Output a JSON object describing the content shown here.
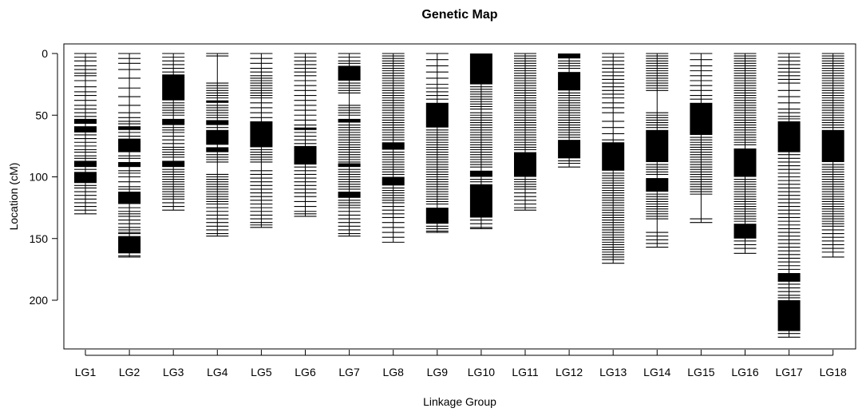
{
  "chart_data": {
    "type": "genetic-map",
    "title": "Genetic Map",
    "xlabel": "Linkage Group",
    "ylabel": "Location (cM)",
    "ylim": [
      0,
      237
    ],
    "y_reversed": true,
    "yticks": [
      0,
      50,
      100,
      150,
      200
    ],
    "grid": false,
    "color": "#000000",
    "groups": [
      {
        "name": "LG1",
        "length": 130,
        "dense": [
          [
            53,
            57
          ],
          [
            59,
            64
          ],
          [
            87,
            92
          ],
          [
            96,
            105
          ]
        ],
        "markers": [
          0,
          3,
          6,
          10,
          13,
          16,
          18,
          22,
          27,
          31,
          34,
          38,
          42,
          45,
          48,
          51,
          66,
          69,
          72,
          75,
          78,
          80,
          83,
          85,
          94,
          107,
          109,
          112,
          115,
          118,
          121,
          124,
          127,
          130
        ]
      },
      {
        "name": "LG2",
        "length": 165,
        "dense": [
          [
            59,
            62
          ],
          [
            69,
            80
          ],
          [
            88,
            92
          ],
          [
            112,
            122
          ],
          [
            148,
            162
          ]
        ],
        "markers": [
          0,
          4,
          8,
          13,
          20,
          28,
          35,
          42,
          48,
          52,
          55,
          57,
          64,
          67,
          83,
          85,
          95,
          97,
          100,
          104,
          108,
          110,
          125,
          128,
          130,
          132,
          135,
          138,
          141,
          143,
          145,
          146,
          164,
          165
        ]
      },
      {
        "name": "LG3",
        "length": 127,
        "dense": [
          [
            17,
            38
          ],
          [
            53,
            58
          ],
          [
            87,
            92
          ]
        ],
        "markers": [
          0,
          3,
          6,
          9,
          12,
          15,
          40,
          42,
          44,
          46,
          48,
          50,
          60,
          62,
          64,
          67,
          70,
          73,
          76,
          78,
          80,
          82,
          84,
          94,
          96,
          98,
          100,
          102,
          104,
          106,
          108,
          110,
          112,
          114,
          116,
          118,
          121,
          124,
          127
        ]
      },
      {
        "name": "LG4",
        "length": 148,
        "dense": [
          [
            38,
            40
          ],
          [
            54,
            58
          ],
          [
            62,
            74
          ],
          [
            76,
            80
          ]
        ],
        "markers": [
          0,
          2,
          24,
          26,
          28,
          30,
          32,
          34,
          36,
          42,
          44,
          46,
          48,
          50,
          52,
          60,
          82,
          84,
          86,
          88,
          98,
          100,
          102,
          104,
          106,
          108,
          110,
          112,
          114,
          116,
          118,
          120,
          122,
          125,
          128,
          131,
          134,
          137,
          140,
          143,
          146,
          148
        ]
      },
      {
        "name": "LG5",
        "length": 141,
        "dense": [
          [
            55,
            76
          ]
        ],
        "markers": [
          0,
          4,
          8,
          12,
          15,
          18,
          20,
          22,
          24,
          26,
          28,
          30,
          32,
          34,
          36,
          40,
          44,
          48,
          52,
          78,
          80,
          82,
          84,
          86,
          88,
          95,
          98,
          101,
          104,
          107,
          110,
          113,
          116,
          119,
          122,
          125,
          128,
          131,
          134,
          137,
          139,
          141
        ]
      },
      {
        "name": "LG6",
        "length": 132,
        "dense": [
          [
            60,
            62
          ],
          [
            75,
            90
          ]
        ],
        "markers": [
          0,
          3,
          6,
          9,
          12,
          15,
          18,
          22,
          26,
          30,
          34,
          38,
          42,
          46,
          50,
          54,
          58,
          64,
          67,
          70,
          73,
          92,
          95,
          98,
          101,
          104,
          107,
          110,
          113,
          116,
          120,
          124,
          128,
          130,
          132
        ]
      },
      {
        "name": "LG7",
        "length": 148,
        "dense": [
          [
            10,
            22
          ],
          [
            53,
            56
          ],
          [
            89,
            92
          ],
          [
            112,
            117
          ]
        ],
        "markers": [
          0,
          3,
          6,
          8,
          24,
          26,
          28,
          30,
          32,
          42,
          44,
          46,
          48,
          50,
          58,
          60,
          62,
          64,
          66,
          68,
          70,
          72,
          74,
          76,
          78,
          80,
          82,
          84,
          86,
          88,
          94,
          96,
          98,
          100,
          102,
          104,
          106,
          108,
          110,
          119,
          121,
          123,
          125,
          128,
          131,
          134,
          137,
          140,
          143,
          146,
          148
        ]
      },
      {
        "name": "LG8",
        "length": 153,
        "dense": [
          [
            72,
            78
          ],
          [
            100,
            107
          ]
        ],
        "markers": [
          0,
          2,
          4,
          6,
          8,
          10,
          12,
          14,
          16,
          18,
          20,
          22,
          24,
          26,
          28,
          30,
          32,
          34,
          36,
          38,
          40,
          42,
          44,
          46,
          48,
          50,
          52,
          54,
          56,
          58,
          60,
          62,
          64,
          66,
          68,
          70,
          80,
          82,
          84,
          86,
          88,
          90,
          92,
          94,
          96,
          98,
          109,
          111,
          113,
          115,
          117,
          119,
          121,
          124,
          127,
          130,
          133,
          137,
          141,
          145,
          149,
          153
        ]
      },
      {
        "name": "LG9",
        "length": 145,
        "dense": [
          [
            40,
            60
          ],
          [
            125,
            138
          ]
        ],
        "markers": [
          0,
          5,
          10,
          15,
          20,
          25,
          28,
          31,
          34,
          37,
          62,
          64,
          66,
          68,
          70,
          72,
          74,
          76,
          78,
          80,
          82,
          84,
          86,
          88,
          90,
          92,
          94,
          96,
          98,
          100,
          102,
          104,
          106,
          108,
          110,
          112,
          114,
          116,
          118,
          120,
          122,
          140,
          142,
          144,
          145
        ]
      },
      {
        "name": "LG10",
        "length": 142,
        "dense": [
          [
            0,
            25
          ],
          [
            95,
            100
          ],
          [
            106,
            133
          ]
        ],
        "markers": [
          27,
          29,
          31,
          33,
          35,
          37,
          39,
          41,
          43,
          45,
          48,
          50,
          52,
          54,
          56,
          58,
          60,
          62,
          64,
          66,
          68,
          70,
          72,
          74,
          76,
          78,
          80,
          82,
          84,
          86,
          88,
          90,
          92,
          102,
          104,
          135,
          138,
          141,
          142
        ]
      },
      {
        "name": "LG11",
        "length": 127,
        "dense": [
          [
            80,
            100
          ]
        ],
        "markers": [
          0,
          2,
          4,
          6,
          8,
          10,
          12,
          14,
          16,
          18,
          20,
          22,
          24,
          26,
          28,
          30,
          32,
          34,
          36,
          38,
          40,
          42,
          44,
          46,
          48,
          50,
          52,
          54,
          56,
          58,
          60,
          62,
          64,
          66,
          68,
          70,
          72,
          74,
          76,
          78,
          102,
          104,
          106,
          108,
          110,
          113,
          116,
          119,
          122,
          125,
          127
        ]
      },
      {
        "name": "LG12",
        "length": 92,
        "dense": [
          [
            0,
            4
          ],
          [
            15,
            30
          ],
          [
            70,
            85
          ]
        ],
        "markers": [
          6,
          8,
          10,
          12,
          32,
          34,
          36,
          38,
          40,
          42,
          44,
          46,
          48,
          50,
          52,
          54,
          56,
          58,
          60,
          62,
          64,
          66,
          68,
          87,
          89,
          92
        ]
      },
      {
        "name": "LG13",
        "length": 170,
        "dense": [
          [
            72,
            95
          ]
        ],
        "markers": [
          0,
          3,
          6,
          9,
          12,
          15,
          18,
          21,
          24,
          27,
          30,
          33,
          36,
          40,
          44,
          48,
          55,
          60,
          65,
          70,
          97,
          99,
          101,
          103,
          105,
          107,
          109,
          111,
          113,
          115,
          117,
          119,
          121,
          123,
          125,
          127,
          129,
          131,
          133,
          135,
          137,
          139,
          141,
          143,
          145,
          147,
          149,
          151,
          153,
          155,
          157,
          159,
          161,
          163,
          165,
          167,
          170
        ]
      },
      {
        "name": "LG14",
        "length": 157,
        "dense": [
          [
            62,
            88
          ],
          [
            101,
            112
          ]
        ],
        "markers": [
          0,
          2,
          4,
          6,
          8,
          10,
          12,
          14,
          16,
          18,
          20,
          22,
          24,
          26,
          28,
          30,
          48,
          50,
          52,
          54,
          56,
          58,
          60,
          90,
          92,
          94,
          96,
          98,
          114,
          116,
          118,
          120,
          122,
          124,
          126,
          128,
          130,
          132,
          134,
          145,
          148,
          151,
          154,
          157
        ]
      },
      {
        "name": "LG15",
        "length": 137,
        "dense": [
          [
            40,
            66
          ]
        ],
        "markers": [
          0,
          5,
          10,
          14,
          18,
          22,
          26,
          30,
          34,
          37,
          68,
          70,
          72,
          74,
          76,
          78,
          80,
          82,
          84,
          86,
          88,
          90,
          92,
          94,
          96,
          98,
          100,
          102,
          104,
          106,
          108,
          110,
          112,
          114,
          134,
          137
        ]
      },
      {
        "name": "LG16",
        "length": 162,
        "dense": [
          [
            77,
            100
          ],
          [
            138,
            150
          ]
        ],
        "markers": [
          0,
          2,
          4,
          6,
          8,
          10,
          12,
          14,
          16,
          18,
          20,
          22,
          24,
          26,
          28,
          30,
          32,
          34,
          36,
          38,
          40,
          42,
          44,
          46,
          48,
          50,
          52,
          54,
          56,
          58,
          60,
          62,
          64,
          66,
          68,
          70,
          72,
          74,
          102,
          104,
          106,
          108,
          110,
          112,
          114,
          116,
          118,
          120,
          122,
          124,
          126,
          128,
          130,
          132,
          134,
          136,
          152,
          155,
          158,
          162
        ]
      },
      {
        "name": "LG17",
        "length": 230,
        "dense": [
          [
            55,
            80
          ],
          [
            178,
            185
          ],
          [
            200,
            225
          ]
        ],
        "markers": [
          0,
          3,
          6,
          9,
          12,
          15,
          18,
          21,
          24,
          30,
          35,
          40,
          45,
          48,
          51,
          53,
          82,
          85,
          88,
          91,
          94,
          97,
          100,
          103,
          106,
          109,
          112,
          115,
          118,
          121,
          124,
          127,
          130,
          133,
          136,
          139,
          142,
          145,
          148,
          151,
          154,
          157,
          160,
          163,
          166,
          169,
          172,
          175,
          187,
          190,
          193,
          196,
          198,
          227,
          230
        ]
      },
      {
        "name": "LG18",
        "length": 165,
        "dense": [
          [
            62,
            88
          ]
        ],
        "markers": [
          0,
          2,
          4,
          6,
          8,
          10,
          12,
          14,
          16,
          18,
          20,
          22,
          24,
          26,
          28,
          30,
          32,
          34,
          36,
          38,
          40,
          42,
          44,
          46,
          48,
          50,
          52,
          54,
          56,
          58,
          60,
          90,
          92,
          94,
          96,
          98,
          100,
          102,
          104,
          106,
          108,
          110,
          112,
          114,
          116,
          118,
          120,
          122,
          124,
          126,
          128,
          130,
          132,
          134,
          136,
          138,
          140,
          143,
          146,
          149,
          152,
          155,
          158,
          161,
          165
        ]
      }
    ]
  }
}
